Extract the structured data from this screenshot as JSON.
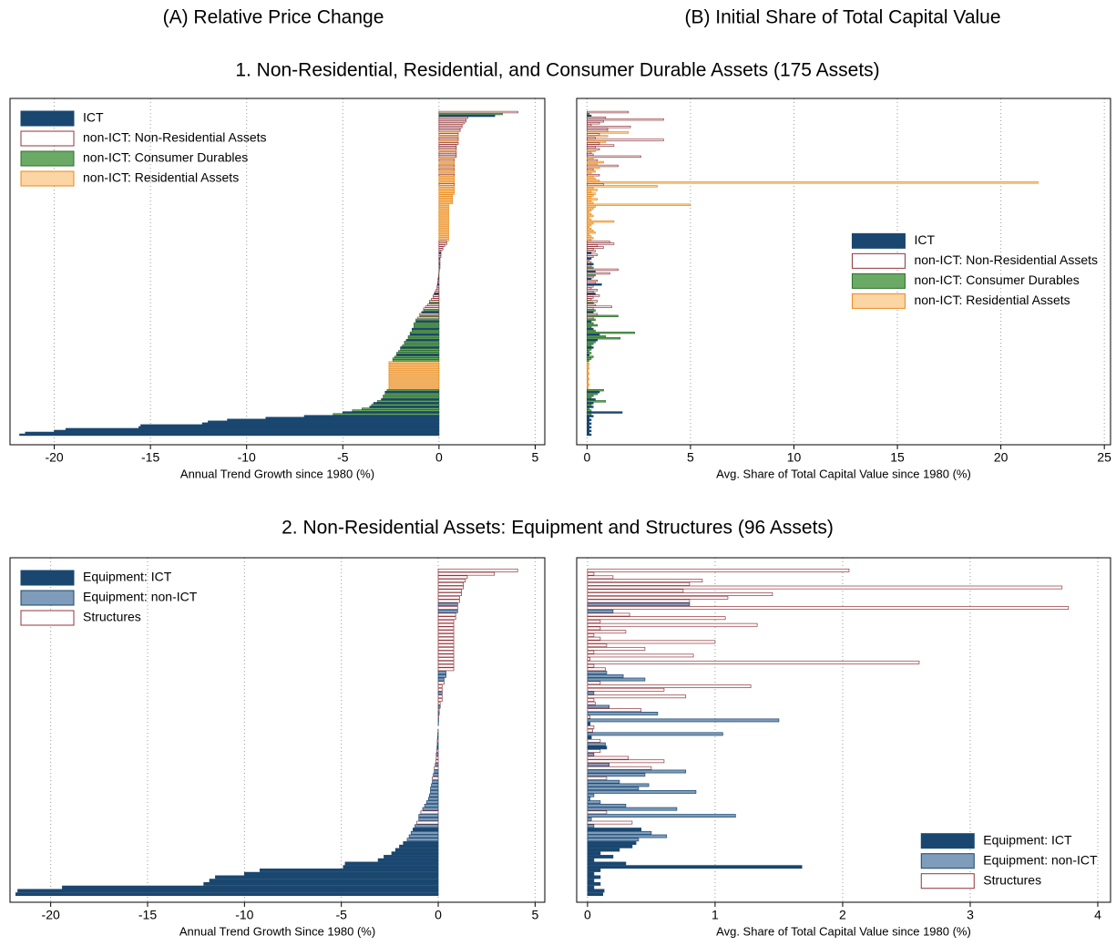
{
  "column_titles": [
    "(A) Relative Price Change",
    "(B) Initial Share of Total Capital Value"
  ],
  "section_titles": [
    "1. Non-Residential, Residential, and Consumer Durable Assets (175 Assets)",
    "2. Non-Residential Assets: Equipment and Structures (96 Assets)"
  ],
  "chart_data": [
    {
      "type": "barh",
      "xlabel": "Annual Trend Growth since 1980 (%)",
      "xlim": [
        -22.3,
        5.5
      ],
      "xticks": [
        -20,
        -15,
        -10,
        -5,
        0,
        5
      ],
      "grid": true,
      "legend_loc": "upper left",
      "series": [
        {
          "name": "ICT",
          "color": "#1a476f",
          "fill": "#1a476f"
        },
        {
          "name": "non-ICT: Non-Residential Assets",
          "color": "#90353b",
          "fill": "#ffffff"
        },
        {
          "name": "non-ICT: Consumer Durables",
          "color": "#2d6d2d",
          "fill": "#6aaa64"
        },
        {
          "name": "non-ICT: Residential Assets",
          "color": "#e8891a",
          "fill": "#fcd5a5"
        }
      ],
      "groups": [
        1,
        2,
        0,
        1,
        1,
        1,
        1,
        1,
        1,
        1,
        1,
        3,
        1,
        3,
        1,
        1,
        3,
        1,
        1,
        1,
        1,
        3,
        1,
        1,
        1,
        3,
        1,
        3,
        3,
        1,
        3,
        1,
        3,
        3,
        1,
        3,
        3,
        3,
        3,
        1,
        3,
        3,
        3,
        3,
        3,
        3,
        3,
        3,
        3,
        3,
        3,
        3,
        3,
        3,
        3,
        3,
        3,
        3,
        3,
        3,
        3,
        3,
        3,
        3,
        3,
        3,
        3,
        3,
        3,
        3,
        1,
        1,
        1,
        1,
        1,
        1,
        0,
        1,
        1,
        0,
        1,
        1,
        0,
        1,
        2,
        1,
        0,
        1,
        2,
        1,
        0,
        1,
        1,
        0,
        1,
        1,
        1,
        1,
        0,
        1,
        1,
        1,
        1,
        2,
        1,
        1,
        1,
        2,
        0,
        1,
        2,
        1,
        2,
        0,
        2,
        2,
        2,
        0,
        2,
        2,
        0,
        2,
        2,
        0,
        2,
        2,
        2,
        0,
        2,
        2,
        2,
        0,
        2,
        2,
        2,
        3,
        3,
        3,
        3,
        3,
        3,
        3,
        3,
        3,
        3,
        3,
        3,
        3,
        3,
        3,
        2,
        0,
        2,
        2,
        2,
        0,
        2,
        0,
        2,
        0,
        2,
        2,
        0,
        2,
        0,
        0,
        0,
        0,
        0,
        0,
        0,
        0,
        0,
        0,
        0
      ],
      "values": [
        4.1,
        3.3,
        2.9,
        1.5,
        1.4,
        1.4,
        1.3,
        1.2,
        1.2,
        1.1,
        1.1,
        1.0,
        1.0,
        1.0,
        1.0,
        1.0,
        1.0,
        1.0,
        0.9,
        0.9,
        0.9,
        0.9,
        0.9,
        0.9,
        0.9,
        0.8,
        0.8,
        0.8,
        0.8,
        0.8,
        0.8,
        0.8,
        0.8,
        0.8,
        0.8,
        0.8,
        0.8,
        0.8,
        0.8,
        0.8,
        0.8,
        0.8,
        0.8,
        0.8,
        0.8,
        0.7,
        0.7,
        0.7,
        0.7,
        0.7,
        0.5,
        0.5,
        0.5,
        0.5,
        0.5,
        0.5,
        0.5,
        0.5,
        0.5,
        0.5,
        0.5,
        0.5,
        0.5,
        0.5,
        0.5,
        0.5,
        0.5,
        0.5,
        0.5,
        0.5,
        0.4,
        0.4,
        0.3,
        0.2,
        0.2,
        0.1,
        0.1,
        0.1,
        0.1,
        0.05,
        0.05,
        0.05,
        0.05,
        0.05,
        0.05,
        0.02,
        0.01,
        -0.01,
        -0.02,
        -0.03,
        -0.05,
        -0.05,
        -0.07,
        -0.08,
        -0.1,
        -0.1,
        -0.15,
        -0.2,
        -0.25,
        -0.3,
        -0.3,
        -0.4,
        -0.5,
        -0.5,
        -0.6,
        -0.7,
        -0.8,
        -0.8,
        -0.9,
        -1.0,
        -1.0,
        -1.1,
        -1.2,
        -1.2,
        -1.3,
        -1.3,
        -1.3,
        -1.4,
        -1.4,
        -1.5,
        -1.5,
        -1.6,
        -1.6,
        -1.7,
        -1.8,
        -1.8,
        -1.9,
        -2.0,
        -2.0,
        -2.1,
        -2.2,
        -2.2,
        -2.3,
        -2.4,
        -2.4,
        -2.6,
        -2.6,
        -2.6,
        -2.6,
        -2.6,
        -2.6,
        -2.6,
        -2.6,
        -2.6,
        -2.6,
        -2.6,
        -2.6,
        -2.6,
        -2.6,
        -2.6,
        -2.7,
        -2.8,
        -2.8,
        -2.9,
        -2.9,
        -3.0,
        -3.2,
        -3.4,
        -3.5,
        -3.6,
        -4.0,
        -4.5,
        -5.0,
        -5.5,
        -7.0,
        -9.0,
        -11.0,
        -12.0,
        -12.3,
        -15.5,
        -15.6,
        -19.4,
        -20.0,
        -21.5,
        -21.8
      ]
    },
    {
      "type": "barh",
      "xlabel": "Avg. Share of Total Capital Value since 1980 (%)",
      "xlim": [
        -0.5,
        25.3
      ],
      "xticks": [
        0,
        5,
        10,
        15,
        20,
        25
      ],
      "grid": true,
      "legend_loc": "center right",
      "series": [
        {
          "name": "ICT",
          "color": "#1a476f",
          "fill": "#1a476f"
        },
        {
          "name": "non-ICT: Non-Residential Assets",
          "color": "#90353b",
          "fill": "#ffffff"
        },
        {
          "name": "non-ICT: Consumer Durables",
          "color": "#2d6d2d",
          "fill": "#6aaa64"
        },
        {
          "name": "non-ICT: Residential Assets",
          "color": "#e8891a",
          "fill": "#fcd5a5"
        }
      ],
      "groups": [
        1,
        2,
        0,
        1,
        1,
        1,
        1,
        1,
        1,
        1,
        1,
        3,
        1,
        3,
        1,
        1,
        3,
        1,
        1,
        1,
        1,
        3,
        1,
        1,
        1,
        3,
        1,
        3,
        3,
        1,
        3,
        1,
        3,
        3,
        1,
        3,
        3,
        3,
        3,
        1,
        3,
        3,
        3,
        3,
        3,
        3,
        3,
        3,
        3,
        3,
        3,
        3,
        3,
        3,
        3,
        3,
        3,
        3,
        3,
        3,
        3,
        3,
        3,
        3,
        3,
        3,
        3,
        3,
        3,
        3,
        1,
        1,
        1,
        1,
        1,
        1,
        0,
        1,
        1,
        0,
        1,
        1,
        0,
        1,
        2,
        1,
        0,
        1,
        2,
        1,
        0,
        1,
        1,
        0,
        1,
        1,
        1,
        1,
        0,
        1,
        1,
        1,
        1,
        2,
        1,
        1,
        1,
        2,
        0,
        1,
        2,
        1,
        2,
        0,
        2,
        2,
        2,
        0,
        2,
        2,
        0,
        2,
        2,
        0,
        2,
        2,
        2,
        0,
        2,
        2,
        2,
        0,
        2,
        2,
        2,
        3,
        3,
        3,
        3,
        3,
        3,
        3,
        3,
        3,
        3,
        3,
        3,
        3,
        3,
        3,
        2,
        0,
        2,
        2,
        2,
        0,
        2,
        0,
        2,
        0,
        2,
        2,
        0,
        2,
        0,
        0,
        0,
        0,
        0,
        0,
        0,
        0,
        0,
        0,
        0
      ],
      "values": [
        2.0,
        0.1,
        0.2,
        0.9,
        3.7,
        0.8,
        0.6,
        0.2,
        2.1,
        1.0,
        1.0,
        2.0,
        0.6,
        1.0,
        0.4,
        3.7,
        0.9,
        0.6,
        1.3,
        0.4,
        0.6,
        0.4,
        0.2,
        0.3,
        2.6,
        0.3,
        0.5,
        0.8,
        0.5,
        1.5,
        0.6,
        0.3,
        0.4,
        0.2,
        0.6,
        0.3,
        0.4,
        0.6,
        21.8,
        0.8,
        3.4,
        0.3,
        0.5,
        0.2,
        0.4,
        0.3,
        0.2,
        0.5,
        0.2,
        0.3,
        5.0,
        0.4,
        0.3,
        0.2,
        0.1,
        0.2,
        0.3,
        0.1,
        0.2,
        1.3,
        0.3,
        0.2,
        0.1,
        0.2,
        0.3,
        0.4,
        0.1,
        0.2,
        0.3,
        0.2,
        1.1,
        1.3,
        0.5,
        0.8,
        0.3,
        0.4,
        0.2,
        0.5,
        0.3,
        0.2,
        0.1,
        0.2,
        0.3,
        0.2,
        0.3,
        1.5,
        0.4,
        1.1,
        0.4,
        0.3,
        0.2,
        0.5,
        0.4,
        0.7,
        0.3,
        0.2,
        0.5,
        0.3,
        0.4,
        0.6,
        0.3,
        0.2,
        0.5,
        0.3,
        0.4,
        1.2,
        0.3,
        0.4,
        0.3,
        0.5,
        1.5,
        0.3,
        0.4,
        0.2,
        0.3,
        0.5,
        0.2,
        0.3,
        0.4,
        2.3,
        0.6,
        0.9,
        1.6,
        0.5,
        0.4,
        0.3,
        0.2,
        0.3,
        0.2,
        0.1,
        0.2,
        0.1,
        0.3,
        0.2,
        0.1,
        0.05,
        0.1,
        0.05,
        0.1,
        0.05,
        0.05,
        0.1,
        0.05,
        0.05,
        0.1,
        0.05,
        0.05,
        0.1,
        0.05,
        0.05,
        0.8,
        0.6,
        0.5,
        0.3,
        0.2,
        0.4,
        0.9,
        0.3,
        0.2,
        0.3,
        0.1,
        0.2,
        1.7,
        0.2,
        0.3,
        0.1,
        0.2,
        0.1,
        0.2,
        0.1,
        0.2,
        0.1,
        0.2,
        0.1,
        0.2
      ]
    },
    {
      "type": "barh",
      "xlabel": "Annual Trend Growth Since 1980 (%)",
      "xlim": [
        -22.1,
        5.5
      ],
      "xticks": [
        -20,
        -15,
        -10,
        -5,
        0,
        5
      ],
      "grid": true,
      "legend_loc": "upper left",
      "series": [
        {
          "name": "Equipment: ICT",
          "color": "#1a476f",
          "fill": "#1a476f"
        },
        {
          "name": "Equipment: non-ICT",
          "color": "#1a476f",
          "fill": "#7f9cba"
        },
        {
          "name": "Structures",
          "color": "#90353b",
          "fill": "#ffffff"
        }
      ],
      "groups": [
        2,
        2,
        2,
        2,
        2,
        2,
        2,
        2,
        2,
        2,
        1,
        2,
        1,
        2,
        2,
        2,
        2,
        2,
        2,
        2,
        2,
        2,
        2,
        2,
        2,
        2,
        2,
        2,
        2,
        2,
        1,
        1,
        1,
        2,
        2,
        2,
        1,
        2,
        2,
        2,
        1,
        2,
        1,
        2,
        1,
        0,
        2,
        2,
        1,
        0,
        2,
        1,
        0,
        2,
        1,
        2,
        2,
        1,
        2,
        1,
        1,
        2,
        1,
        1,
        1,
        1,
        1,
        1,
        1,
        1,
        1,
        2,
        1,
        1,
        2,
        1,
        0,
        1,
        1,
        1,
        0,
        0,
        0,
        0,
        0,
        0,
        0,
        0,
        0,
        0,
        0,
        0,
        0,
        0,
        0,
        0
      ],
      "values": [
        4.1,
        2.9,
        1.5,
        1.4,
        1.3,
        1.3,
        1.2,
        1.2,
        1.1,
        1.1,
        1.0,
        1.0,
        1.0,
        0.9,
        0.9,
        0.8,
        0.8,
        0.8,
        0.8,
        0.8,
        0.8,
        0.8,
        0.8,
        0.8,
        0.8,
        0.8,
        0.8,
        0.8,
        0.8,
        0.8,
        0.4,
        0.4,
        0.3,
        0.3,
        0.2,
        0.2,
        0.2,
        0.2,
        0.2,
        0.1,
        0.1,
        0.05,
        0.05,
        0.02,
        0.02,
        0.01,
        0,
        -0.01,
        -0.02,
        -0.03,
        -0.05,
        -0.05,
        -0.06,
        -0.08,
        -0.1,
        -0.1,
        -0.12,
        -0.15,
        -0.2,
        -0.2,
        -0.25,
        -0.3,
        -0.3,
        -0.35,
        -0.4,
        -0.4,
        -0.45,
        -0.5,
        -0.6,
        -0.7,
        -0.8,
        -0.9,
        -1.0,
        -1.0,
        -1.1,
        -1.2,
        -1.3,
        -1.4,
        -1.5,
        -1.6,
        -1.8,
        -2.0,
        -2.2,
        -2.4,
        -2.8,
        -3.1,
        -4.8,
        -4.9,
        -9.2,
        -10.0,
        -11.5,
        -11.8,
        -12.1,
        -19.4,
        -21.7,
        -21.8
      ]
    },
    {
      "type": "barh",
      "xlabel": "Avg. Share of Total Capital Value since 1980 (%)",
      "xlim": [
        -0.085,
        4.1
      ],
      "xticks": [
        0,
        1,
        2,
        3,
        4
      ],
      "grid": true,
      "legend_loc": "lower right",
      "series": [
        {
          "name": "Equipment: ICT",
          "color": "#1a476f",
          "fill": "#1a476f"
        },
        {
          "name": "Equipment: non-ICT",
          "color": "#1a476f",
          "fill": "#7f9cba"
        },
        {
          "name": "Structures",
          "color": "#90353b",
          "fill": "#ffffff"
        }
      ],
      "groups": [
        2,
        2,
        2,
        2,
        2,
        2,
        2,
        2,
        2,
        2,
        1,
        2,
        1,
        2,
        2,
        2,
        2,
        2,
        2,
        2,
        2,
        2,
        2,
        2,
        2,
        2,
        2,
        2,
        2,
        2,
        1,
        1,
        1,
        2,
        2,
        2,
        1,
        2,
        2,
        2,
        1,
        2,
        1,
        2,
        1,
        0,
        2,
        2,
        1,
        0,
        2,
        1,
        0,
        2,
        1,
        2,
        2,
        1,
        2,
        1,
        1,
        2,
        1,
        1,
        1,
        1,
        1,
        1,
        1,
        1,
        1,
        2,
        1,
        1,
        2,
        1,
        0,
        1,
        1,
        1,
        0,
        0,
        0,
        0,
        0,
        0,
        0,
        0,
        0,
        0,
        0,
        0,
        0,
        0,
        0,
        0
      ],
      "values": [
        2.05,
        0.05,
        0.2,
        0.9,
        0.8,
        3.72,
        0.75,
        1.45,
        1.1,
        0.8,
        0.8,
        3.77,
        0.2,
        0.33,
        1.08,
        0.1,
        1.33,
        0.1,
        0.3,
        0.05,
        0.1,
        1.0,
        0.15,
        0.45,
        0.05,
        0.83,
        0.02,
        2.6,
        0.05,
        0.14,
        0.15,
        0.28,
        0.45,
        0.1,
        1.28,
        0.6,
        0.05,
        0.77,
        0.05,
        0.06,
        0.17,
        0.42,
        0.55,
        0.02,
        1.5,
        0.02,
        0.05,
        0.04,
        1.06,
        0.03,
        0.1,
        0.14,
        0.15,
        0.1,
        0.05,
        0.32,
        0.6,
        0.17,
        0.5,
        0.77,
        0.45,
        0.15,
        0.25,
        0.48,
        0.4,
        0.85,
        0.05,
        0.02,
        0.1,
        0.3,
        0.7,
        0.15,
        1.16,
        0.03,
        0.35,
        0.05,
        0.42,
        0.5,
        0.62,
        0.4,
        0.38,
        0.35,
        0.25,
        0.1,
        0.2,
        0.05,
        0.3,
        1.68,
        0.1,
        0.05,
        0.1,
        0.05,
        0.1,
        0.05,
        0.13,
        0.12
      ]
    }
  ]
}
